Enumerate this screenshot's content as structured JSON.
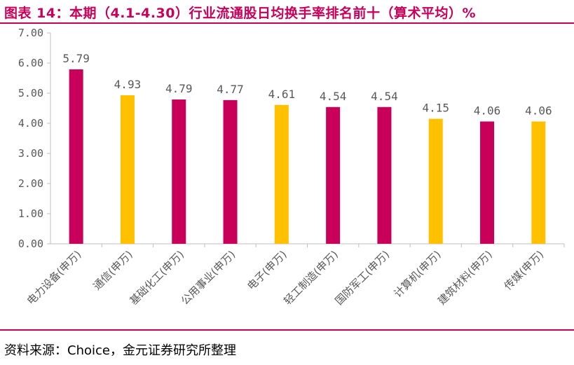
{
  "header": {
    "title": "图表 14：本期（4.1-4.30）行业流通股日均换手率排名前十（算术平均）%"
  },
  "footer": {
    "source": "资料来源：Choice，金元证券研究所整理"
  },
  "colors": {
    "accent": "#c8005a",
    "bar_magenta": "#c8005a",
    "bar_yellow": "#ffc000",
    "axis": "#bfbfbf",
    "text": "#595959"
  },
  "chart_data": {
    "type": "bar",
    "categories": [
      "电力设备(申万)",
      "通信(申万)",
      "基础化工(申万)",
      "公用事业(申万)",
      "电子(申万)",
      "轻工制造(申万)",
      "国防军工(申万)",
      "计算机(申万)",
      "建筑材料(申万)",
      "传媒(申万)"
    ],
    "values": [
      5.79,
      4.93,
      4.79,
      4.77,
      4.61,
      4.54,
      4.54,
      4.15,
      4.06,
      4.06
    ],
    "value_labels": [
      "5.79",
      "4.93",
      "4.79",
      "4.77",
      "4.61",
      "4.54",
      "4.54",
      "4.15",
      "4.06",
      "4.06"
    ],
    "bar_colors": [
      "#c8005a",
      "#ffc000",
      "#c8005a",
      "#c8005a",
      "#ffc000",
      "#c8005a",
      "#c8005a",
      "#ffc000",
      "#c8005a",
      "#ffc000"
    ],
    "y_ticks": [
      "0.00",
      "1.00",
      "2.00",
      "3.00",
      "4.00",
      "5.00",
      "6.00",
      "7.00"
    ],
    "ylim": [
      0,
      7
    ],
    "title": "",
    "xlabel": "",
    "ylabel": "",
    "grid": false,
    "legend": "none"
  }
}
